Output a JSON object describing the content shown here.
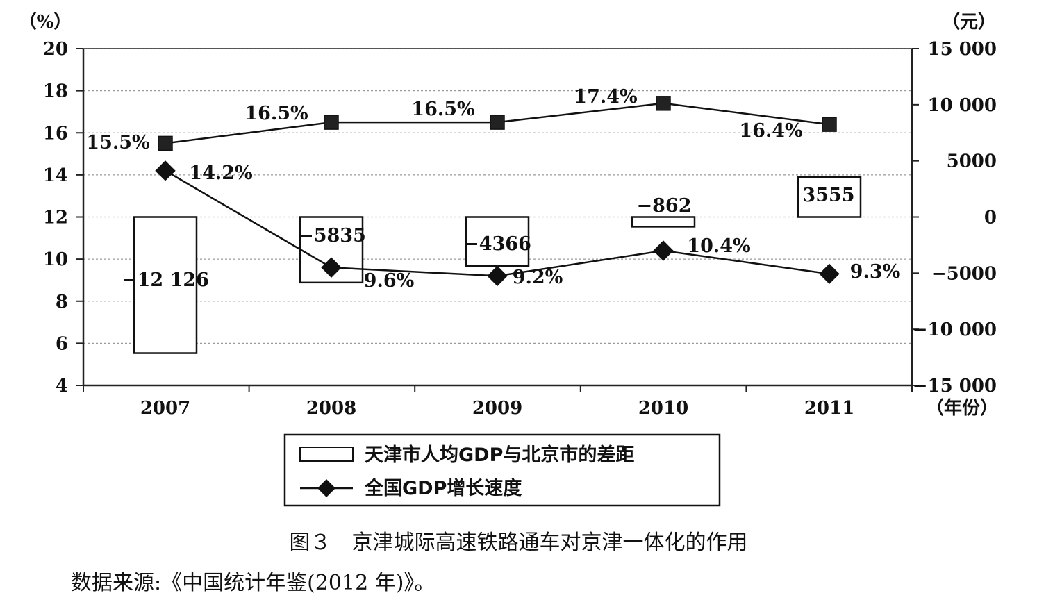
{
  "chart_data": {
    "type": "bar+line",
    "categories": [
      "2007",
      "2008",
      "2009",
      "2010",
      "2011"
    ],
    "left_axis": {
      "unit_label": "（%）",
      "ylim": [
        4,
        20
      ],
      "ticks": [
        "20",
        "18",
        "16",
        "14",
        "12",
        "10",
        "8",
        "6",
        "4"
      ]
    },
    "right_axis": {
      "unit_label": "（元）",
      "ylim": [
        -15000,
        15000
      ],
      "ticks": [
        "15 000",
        "10 000",
        "5000",
        "0",
        "−5000",
        "−10 000",
        "−15 000"
      ]
    },
    "x_unit_label": "（年份）",
    "series": [
      {
        "name": "天津市人均GDP与北京市的差距",
        "kind": "bar",
        "axis": "right",
        "values": [
          -12126,
          -5835,
          -4366,
          -862,
          3555
        ],
        "labels": [
          "−12 126",
          "−5835",
          "−4366",
          "−862",
          "3555"
        ]
      },
      {
        "name": "全国GDP增长速度",
        "kind": "line",
        "axis": "left",
        "marker": "diamond",
        "values": [
          14.2,
          9.6,
          9.2,
          10.4,
          9.3
        ],
        "labels": [
          "14.2%",
          "9.6%",
          "9.2%",
          "10.4%",
          "9.3%"
        ]
      },
      {
        "kind": "line",
        "axis": "left",
        "marker": "square",
        "values": [
          15.5,
          16.5,
          16.5,
          17.4,
          16.4
        ],
        "labels": [
          "15.5%",
          "16.5%",
          "16.5%",
          "17.4%",
          "16.4%"
        ]
      }
    ],
    "grid": true,
    "legend_position": "bottom-center"
  },
  "caption": "图３　京津城际高速铁路通车对京津一体化的作用",
  "source": "数据来源:《中国统计年鉴(2012 年)》。"
}
